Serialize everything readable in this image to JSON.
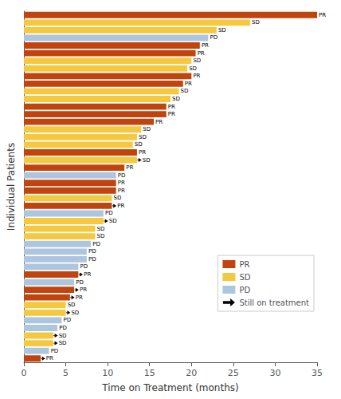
{
  "chart_data": {
    "type": "bar",
    "orientation": "horizontal",
    "xlabel": "Time on Treatment (months)",
    "ylabel": "Individual Patients",
    "categories": [
      null,
      null,
      null,
      null,
      null,
      null,
      null,
      null,
      null,
      null,
      null,
      null,
      null,
      null,
      null,
      null,
      null,
      null,
      null,
      null,
      null,
      null,
      null,
      null,
      null,
      null,
      null,
      null,
      null,
      null,
      null,
      null,
      null,
      null,
      null,
      null,
      null,
      null,
      null,
      null,
      null,
      null,
      null,
      null,
      null,
      null
    ],
    "series": [
      {
        "name": "PR",
        "color": "#c1440e",
        "values": [
          35,
          null,
          null,
          null,
          21,
          20.5,
          null,
          null,
          20,
          19,
          null,
          null,
          17,
          17,
          15.5,
          null,
          null,
          null,
          13.5,
          null,
          12,
          null,
          11,
          11,
          null,
          10.5,
          null,
          null,
          null,
          null,
          null,
          null,
          null,
          null,
          6.5,
          null,
          6,
          5.5,
          null,
          null,
          null,
          null,
          null,
          null,
          null,
          2
        ]
      },
      {
        "name": "SD",
        "color": "#f5c842",
        "values": [
          null,
          27,
          23,
          null,
          null,
          null,
          20,
          19.5,
          null,
          null,
          18.5,
          17.5,
          null,
          null,
          null,
          14,
          13.5,
          13,
          null,
          13.5,
          null,
          null,
          null,
          null,
          10.5,
          null,
          null,
          9.5,
          8.5,
          8.5,
          null,
          null,
          null,
          null,
          null,
          null,
          null,
          null,
          5,
          5,
          null,
          null,
          3.5,
          3.5,
          null,
          null
        ]
      },
      {
        "name": "PD",
        "color": "#adc6e0",
        "values": [
          null,
          null,
          null,
          22,
          null,
          null,
          null,
          null,
          null,
          null,
          null,
          null,
          null,
          null,
          null,
          null,
          null,
          null,
          null,
          null,
          null,
          11,
          null,
          null,
          null,
          null,
          9.5,
          null,
          null,
          null,
          8,
          7.5,
          7.5,
          6.5,
          null,
          6,
          null,
          null,
          null,
          null,
          4.5,
          4,
          null,
          null,
          3,
          null
        ]
      }
    ],
    "ongoing": [
      false,
      false,
      false,
      false,
      false,
      false,
      false,
      false,
      false,
      false,
      false,
      false,
      false,
      false,
      false,
      false,
      false,
      false,
      false,
      true,
      false,
      false,
      false,
      false,
      false,
      true,
      false,
      true,
      false,
      false,
      false,
      false,
      false,
      false,
      true,
      false,
      true,
      true,
      false,
      true,
      false,
      false,
      true,
      true,
      false,
      true
    ],
    "ongoing_label": "Still on treatment",
    "xlim": [
      0,
      35
    ],
    "xticks": [
      0,
      5,
      10,
      15,
      20,
      25,
      30,
      35
    ],
    "grid": false,
    "legend": "lower right",
    "tick_labels": "x"
  }
}
